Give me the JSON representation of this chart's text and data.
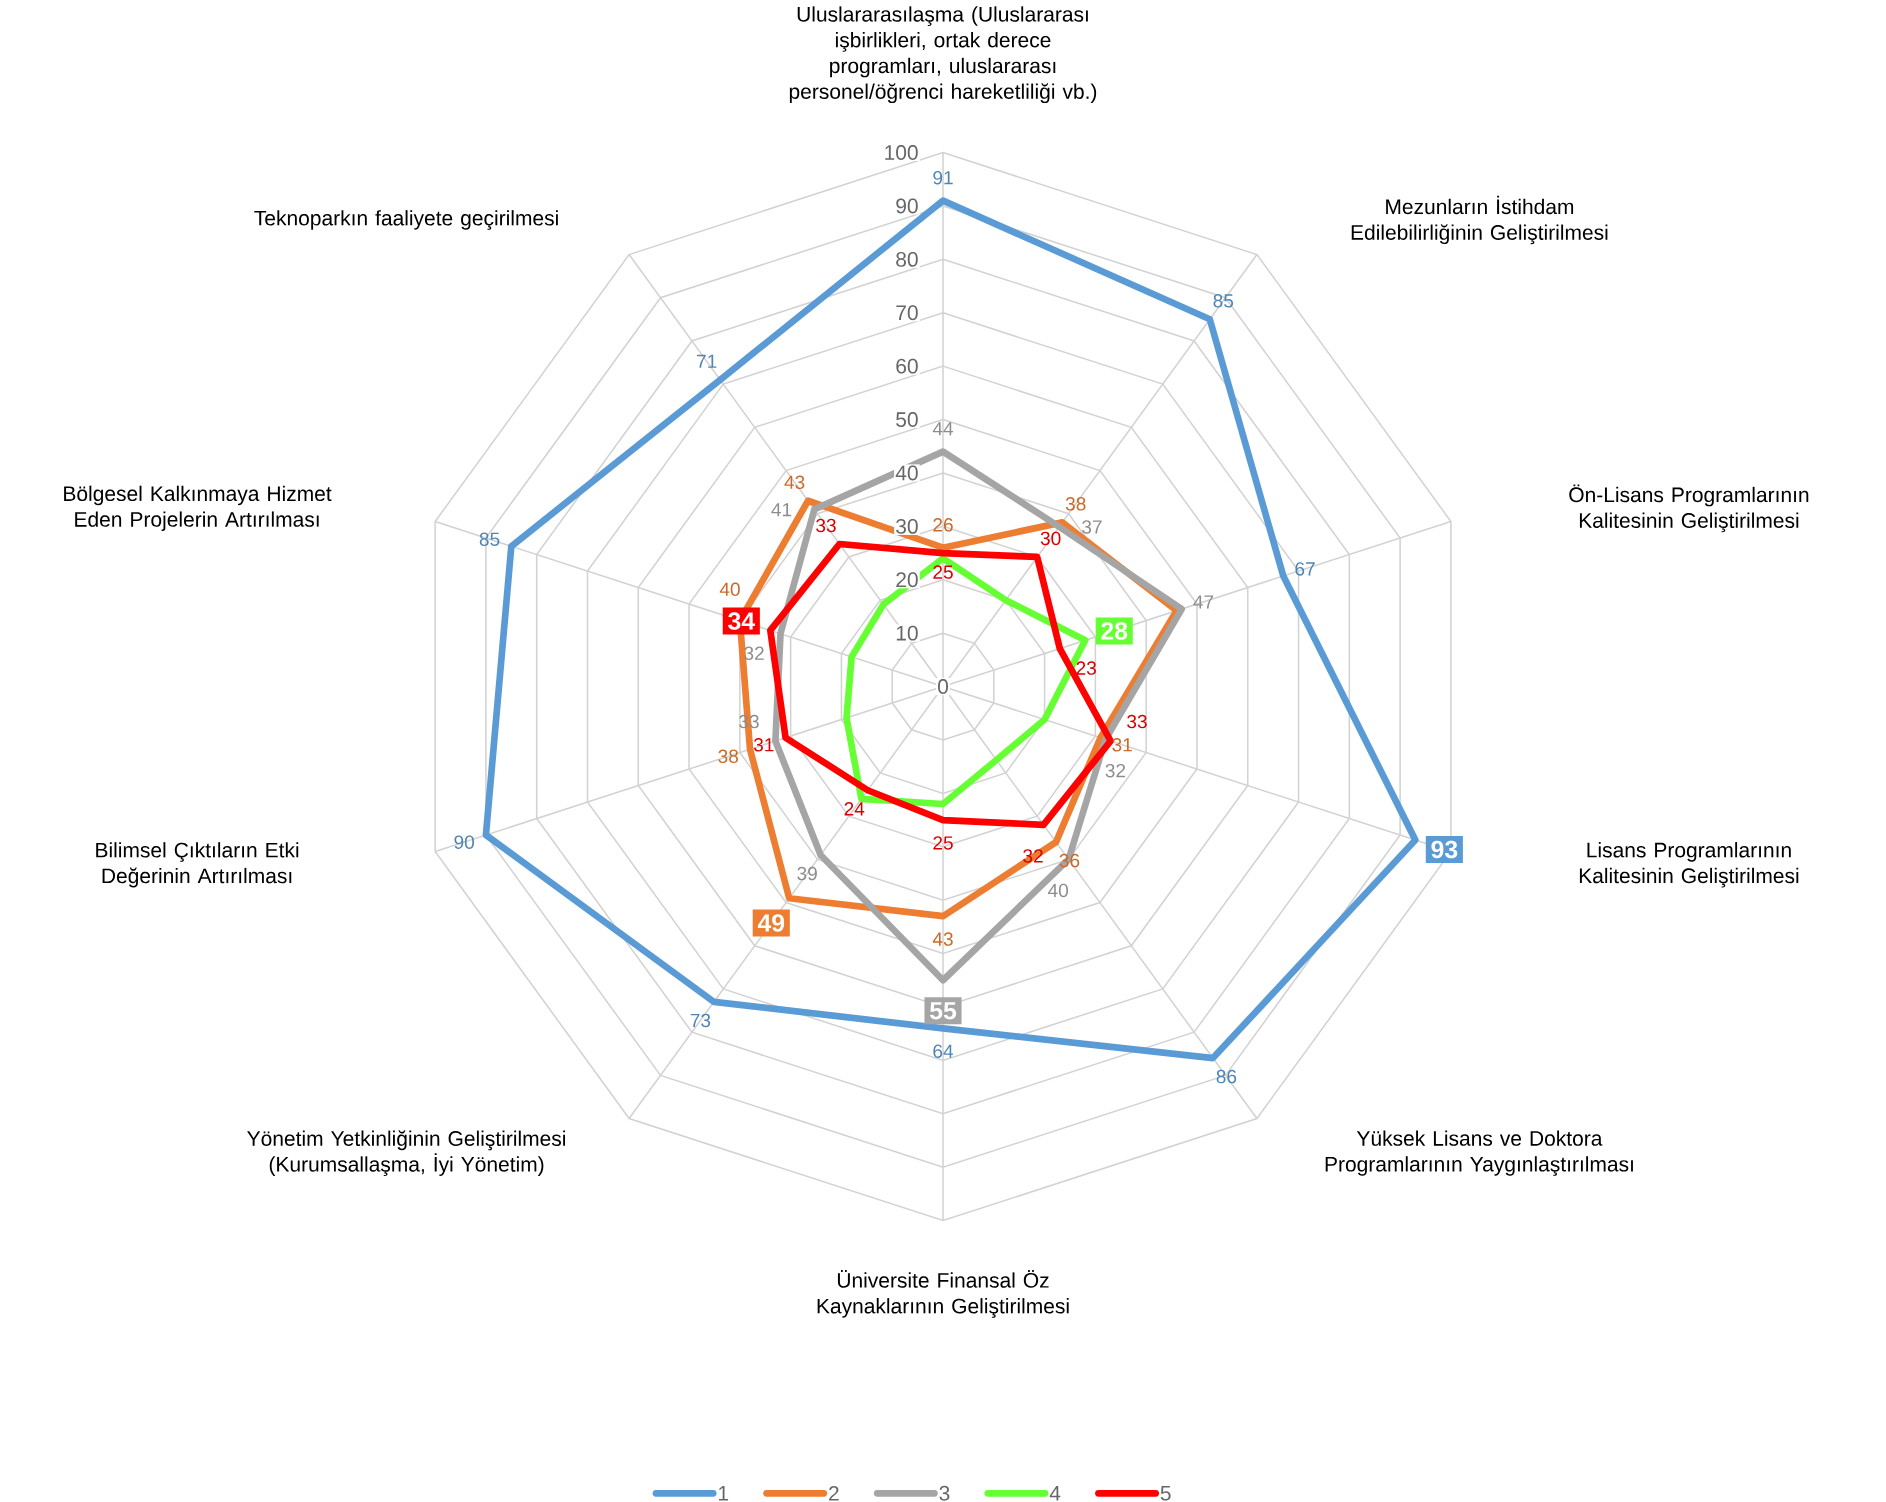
{
  "chart_data": {
    "type": "radar",
    "categories": [
      "Uluslararasılaşma (Uluslararası işbirlikleri, ortak derece programları, uluslararası personel/öğrenci hareketliliği vb.)",
      "Mezunların İstihdam Edilebilirliğinin Geliştirilmesi",
      "Ön-Lisans Programlarının Kalitesinin Geliştirilmesi",
      "Lisans Programlarının Kalitesinin Geliştirilmesi",
      "Yüksek Lisans ve Doktora Programlarının Yaygınlaştırılması",
      "Üniversite Finansal Öz Kaynaklarının Geliştirilmesi",
      "Yönetim Yetkinliğinin Geliştirilmesi (Kurumsallaşma, İyi Yönetim)",
      "Bilimsel Çıktıların Etki Değerinin Artırılması",
      "Bölgesel Kalkınmaya Hizmet Eden Projelerin Artırılması",
      "Teknoparkın faaliyete geçirilmesi"
    ],
    "ylim": [
      0,
      100
    ],
    "yticks": [
      0,
      10,
      20,
      30,
      40,
      50,
      60,
      70,
      80,
      90,
      100
    ],
    "grid": true,
    "legend": "bottom",
    "series": [
      {
        "name": "1",
        "color": "#5b9bd5",
        "values": [
          91,
          85,
          67,
          93,
          86,
          64,
          73,
          90,
          85,
          71
        ],
        "value_labels": [
          "91",
          "85",
          "67",
          "93",
          "86",
          "64",
          "73",
          "90",
          "85",
          "71"
        ]
      },
      {
        "name": "2",
        "color": "#ed7d31",
        "values": [
          26,
          38,
          46,
          31,
          36,
          43,
          49,
          38,
          40,
          43
        ],
        "value_labels": [
          "26",
          "38",
          null,
          "31",
          "36",
          "43",
          "49",
          "38",
          "40",
          "43"
        ]
      },
      {
        "name": "3",
        "color": "#a5a5a5",
        "values": [
          44,
          37,
          47,
          32,
          40,
          55,
          39,
          33,
          32,
          41
        ],
        "value_labels": [
          "44",
          "37",
          "47",
          "32",
          "40",
          "55",
          "39",
          "33",
          "32",
          "41"
        ]
      },
      {
        "name": "4",
        "color": "#66ff33",
        "values": [
          24,
          20,
          28,
          20,
          17,
          22,
          26,
          19,
          18,
          19
        ],
        "value_labels": [
          null,
          null,
          "28",
          null,
          null,
          null,
          null,
          null,
          null,
          null
        ]
      },
      {
        "name": "5",
        "color": "#ff0000",
        "values": [
          25,
          30,
          23,
          33,
          32,
          25,
          24,
          31,
          34,
          33
        ],
        "value_labels": [
          "25",
          "30",
          "23",
          "33",
          "32",
          "25",
          "24",
          "31",
          "34",
          "33"
        ]
      }
    ]
  }
}
